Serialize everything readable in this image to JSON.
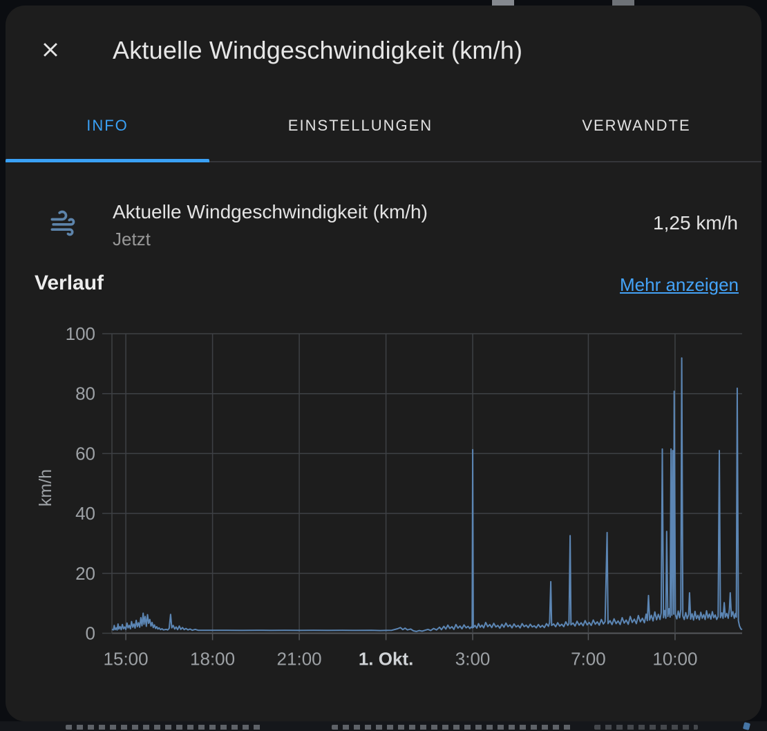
{
  "dialog": {
    "title": "Aktuelle Windgeschwindigkeit (km/h)",
    "tabs": [
      {
        "label": "INFO",
        "active": true
      },
      {
        "label": "EINSTELLUNGEN",
        "active": false
      },
      {
        "label": "VERWANDTE",
        "active": false
      }
    ],
    "entity": {
      "icon": "weather-windy-icon",
      "name": "Aktuelle Windgeschwindigkeit (km/h)",
      "subtitle": "Jetzt",
      "value": "1,25 km/h"
    },
    "history": {
      "heading": "Verlauf",
      "more_link": "Mehr anzeigen"
    }
  },
  "colors": {
    "accent": "#3aa1f6",
    "line": "#5c86b4",
    "grid": "#3e4145",
    "axis_line": "#55585c",
    "tick_text": "#9da1a5",
    "tick_text_bold": "#d0d3d6",
    "icon": "#5d84ab"
  },
  "chart_data": {
    "type": "line",
    "title": "Verlauf",
    "ylabel": "km/h",
    "ylim": [
      0,
      100
    ],
    "yticks": [
      0,
      20,
      40,
      60,
      80,
      100
    ],
    "grid": true,
    "legend": "none",
    "x_unit": "hours_relative_to_midnight_1_okt",
    "xrange": [
      -9.48,
      12.32
    ],
    "xticks": [
      {
        "t": -9,
        "label": "15:00",
        "bold": false
      },
      {
        "t": -6,
        "label": "18:00",
        "bold": false
      },
      {
        "t": -3,
        "label": "21:00",
        "bold": false
      },
      {
        "t": 0,
        "label": "1. Okt.",
        "bold": true
      },
      {
        "t": 3,
        "label": "3:00",
        "bold": false
      },
      {
        "t": 7,
        "label": "7:00",
        "bold": false
      },
      {
        "t": 10,
        "label": "10:00",
        "bold": false
      }
    ],
    "series": [
      {
        "name": "Aktuelle Windgeschwindigkeit (km/h)",
        "unit": "km/h",
        "current": 1.25,
        "points": [
          [
            -9.48,
            1.3
          ],
          [
            -9.43,
            1.1
          ],
          [
            -9.4,
            2.6
          ],
          [
            -9.37,
            1.2
          ],
          [
            -9.33,
            1.8
          ],
          [
            -9.3,
            1.1
          ],
          [
            -9.27,
            3.1
          ],
          [
            -9.24,
            1.4
          ],
          [
            -9.2,
            2.2
          ],
          [
            -9.16,
            1.2
          ],
          [
            -9.12,
            2.9
          ],
          [
            -9.08,
            1.5
          ],
          [
            -9.04,
            2.1
          ],
          [
            -9.0,
            1.3
          ],
          [
            -8.96,
            3.4
          ],
          [
            -8.92,
            1.8
          ],
          [
            -8.88,
            2.6
          ],
          [
            -8.84,
            1.5
          ],
          [
            -8.8,
            3.9
          ],
          [
            -8.76,
            2.0
          ],
          [
            -8.72,
            3.1
          ],
          [
            -8.68,
            1.7
          ],
          [
            -8.64,
            4.3
          ],
          [
            -8.6,
            2.2
          ],
          [
            -8.56,
            3.5
          ],
          [
            -8.52,
            2.0
          ],
          [
            -8.48,
            5.2
          ],
          [
            -8.44,
            2.5
          ],
          [
            -8.4,
            6.7
          ],
          [
            -8.37,
            3.0
          ],
          [
            -8.33,
            5.6
          ],
          [
            -8.29,
            2.3
          ],
          [
            -8.25,
            6.2
          ],
          [
            -8.21,
            3.3
          ],
          [
            -8.17,
            4.6
          ],
          [
            -8.13,
            2.4
          ],
          [
            -8.09,
            3.6
          ],
          [
            -8.05,
            1.9
          ],
          [
            -8.01,
            2.8
          ],
          [
            -7.97,
            1.6
          ],
          [
            -7.93,
            2.2
          ],
          [
            -7.89,
            1.4
          ],
          [
            -7.85,
            1.8
          ],
          [
            -7.8,
            1.2
          ],
          [
            -7.75,
            1.5
          ],
          [
            -7.7,
            1.1
          ],
          [
            -7.6,
            1.3
          ],
          [
            -7.55,
            1.1
          ],
          [
            -7.5,
            1.6
          ],
          [
            -7.45,
            6.3
          ],
          [
            -7.41,
            1.8
          ],
          [
            -7.36,
            2.6
          ],
          [
            -7.31,
            1.4
          ],
          [
            -7.26,
            2.1
          ],
          [
            -7.21,
            1.2
          ],
          [
            -7.15,
            2.4
          ],
          [
            -7.1,
            1.3
          ],
          [
            -7.04,
            1.9
          ],
          [
            -6.98,
            1.2
          ],
          [
            -6.92,
            1.6
          ],
          [
            -6.85,
            1.1
          ],
          [
            -6.78,
            1.4
          ],
          [
            -6.7,
            1.0
          ],
          [
            -6.6,
            1.3
          ],
          [
            -6.5,
            1.0
          ],
          [
            -6.2,
            1.0
          ],
          [
            -5.5,
            1.0
          ],
          [
            -5.0,
            0.95
          ],
          [
            -4.5,
            1.0
          ],
          [
            -4.0,
            0.95
          ],
          [
            -3.5,
            1.0
          ],
          [
            -3.0,
            0.95
          ],
          [
            -2.5,
            1.0
          ],
          [
            -2.0,
            0.95
          ],
          [
            -1.5,
            1.0
          ],
          [
            -1.0,
            0.95
          ],
          [
            -0.5,
            1.0
          ],
          [
            -0.2,
            0.9
          ],
          [
            0.0,
            0.95
          ],
          [
            0.2,
            1.0
          ],
          [
            0.4,
            1.5
          ],
          [
            0.5,
            1.9
          ],
          [
            0.58,
            1.2
          ],
          [
            0.66,
            1.7
          ],
          [
            0.74,
            1.1
          ],
          [
            0.85,
            1.4
          ],
          [
            0.95,
            0.8
          ],
          [
            1.05,
            0.6
          ],
          [
            1.15,
            0.9
          ],
          [
            1.25,
            0.7
          ],
          [
            1.35,
            1.0
          ],
          [
            1.45,
            1.3
          ],
          [
            1.55,
            0.9
          ],
          [
            1.65,
            1.6
          ],
          [
            1.75,
            1.1
          ],
          [
            1.85,
            2.0
          ],
          [
            1.92,
            1.2
          ],
          [
            2.0,
            2.3
          ],
          [
            2.07,
            1.4
          ],
          [
            2.14,
            2.7
          ],
          [
            2.21,
            1.6
          ],
          [
            2.28,
            2.2
          ],
          [
            2.35,
            1.3
          ],
          [
            2.42,
            2.9
          ],
          [
            2.49,
            1.7
          ],
          [
            2.56,
            2.4
          ],
          [
            2.63,
            1.5
          ],
          [
            2.7,
            2.8
          ],
          [
            2.77,
            1.8
          ],
          [
            2.84,
            2.3
          ],
          [
            2.9,
            1.6
          ],
          [
            2.95,
            2.1
          ],
          [
            2.98,
            1.8
          ],
          [
            3.0,
            61.3
          ],
          [
            3.02,
            1.9
          ],
          [
            3.08,
            2.6
          ],
          [
            3.14,
            1.7
          ],
          [
            3.2,
            3.2
          ],
          [
            3.26,
            2.0
          ],
          [
            3.32,
            2.7
          ],
          [
            3.38,
            1.8
          ],
          [
            3.45,
            3.6
          ],
          [
            3.52,
            2.2
          ],
          [
            3.59,
            2.9
          ],
          [
            3.66,
            1.9
          ],
          [
            3.73,
            3.3
          ],
          [
            3.8,
            2.1
          ],
          [
            3.87,
            2.6
          ],
          [
            3.94,
            1.7
          ],
          [
            4.01,
            3.0
          ],
          [
            4.08,
            2.0
          ],
          [
            4.15,
            3.4
          ],
          [
            4.22,
            2.2
          ],
          [
            4.29,
            2.8
          ],
          [
            4.36,
            1.8
          ],
          [
            4.43,
            3.1
          ],
          [
            4.5,
            2.1
          ],
          [
            4.57,
            2.6
          ],
          [
            4.64,
            1.8
          ],
          [
            4.71,
            3.2
          ],
          [
            4.78,
            2.2
          ],
          [
            4.85,
            2.7
          ],
          [
            4.92,
            1.9
          ],
          [
            4.99,
            3.0
          ],
          [
            5.06,
            2.1
          ],
          [
            5.13,
            2.5
          ],
          [
            5.2,
            1.8
          ],
          [
            5.27,
            2.9
          ],
          [
            5.34,
            2.0
          ],
          [
            5.41,
            2.6
          ],
          [
            5.48,
            1.9
          ],
          [
            5.55,
            3.2
          ],
          [
            5.62,
            2.3
          ],
          [
            5.66,
            3.6
          ],
          [
            5.7,
            17.2
          ],
          [
            5.73,
            2.6
          ],
          [
            5.8,
            3.1
          ],
          [
            5.87,
            2.2
          ],
          [
            5.94,
            3.5
          ],
          [
            6.01,
            2.4
          ],
          [
            6.08,
            3.0
          ],
          [
            6.15,
            2.2
          ],
          [
            6.22,
            3.8
          ],
          [
            6.29,
            2.6
          ],
          [
            6.33,
            3.2
          ],
          [
            6.37,
            32.6
          ],
          [
            6.4,
            2.8
          ],
          [
            6.47,
            3.4
          ],
          [
            6.54,
            2.4
          ],
          [
            6.61,
            4.0
          ],
          [
            6.68,
            2.7
          ],
          [
            6.75,
            3.5
          ],
          [
            6.82,
            2.5
          ],
          [
            6.89,
            4.2
          ],
          [
            6.96,
            2.8
          ],
          [
            7.03,
            3.6
          ],
          [
            7.1,
            2.6
          ],
          [
            7.17,
            4.4
          ],
          [
            7.24,
            3.0
          ],
          [
            7.31,
            3.8
          ],
          [
            7.38,
            2.7
          ],
          [
            7.45,
            4.6
          ],
          [
            7.52,
            3.1
          ],
          [
            7.58,
            3.9
          ],
          [
            7.65,
            33.6
          ],
          [
            7.68,
            3.2
          ],
          [
            7.75,
            4.2
          ],
          [
            7.82,
            2.9
          ],
          [
            7.89,
            4.8
          ],
          [
            7.96,
            3.2
          ],
          [
            8.03,
            4.1
          ],
          [
            8.1,
            2.9
          ],
          [
            8.17,
            5.2
          ],
          [
            8.24,
            3.4
          ],
          [
            8.31,
            4.4
          ],
          [
            8.38,
            3.0
          ],
          [
            8.45,
            5.6
          ],
          [
            8.52,
            3.6
          ],
          [
            8.59,
            4.7
          ],
          [
            8.66,
            3.2
          ],
          [
            8.73,
            5.9
          ],
          [
            8.8,
            3.8
          ],
          [
            8.87,
            5.0
          ],
          [
            8.94,
            3.5
          ],
          [
            9.0,
            6.4
          ],
          [
            9.04,
            4.2
          ],
          [
            9.08,
            12.6
          ],
          [
            9.12,
            4.4
          ],
          [
            9.18,
            6.0
          ],
          [
            9.24,
            4.1
          ],
          [
            9.3,
            7.1
          ],
          [
            9.36,
            4.5
          ],
          [
            9.42,
            6.3
          ],
          [
            9.48,
            4.6
          ],
          [
            9.52,
            6.8
          ],
          [
            9.56,
            61.5
          ],
          [
            9.6,
            5.2
          ],
          [
            9.64,
            7.6
          ],
          [
            9.68,
            5.0
          ],
          [
            9.71,
            34.0
          ],
          [
            9.75,
            5.6
          ],
          [
            9.79,
            8.2
          ],
          [
            9.83,
            5.4
          ],
          [
            9.86,
            61.5
          ],
          [
            9.89,
            6.0
          ],
          [
            9.92,
            61.0
          ],
          [
            9.95,
            6.4
          ],
          [
            9.97,
            80.8
          ],
          [
            10.01,
            6.2
          ],
          [
            10.06,
            4.8
          ],
          [
            10.11,
            7.4
          ],
          [
            10.16,
            5.2
          ],
          [
            10.2,
            8.0
          ],
          [
            10.23,
            91.9
          ],
          [
            10.27,
            5.8
          ],
          [
            10.32,
            4.6
          ],
          [
            10.37,
            6.9
          ],
          [
            10.42,
            4.9
          ],
          [
            10.47,
            6.2
          ],
          [
            10.5,
            13.5
          ],
          [
            10.54,
            4.7
          ],
          [
            10.59,
            6.5
          ],
          [
            10.64,
            4.4
          ],
          [
            10.69,
            7.3
          ],
          [
            10.74,
            4.9
          ],
          [
            10.79,
            6.0
          ],
          [
            10.84,
            4.5
          ],
          [
            10.89,
            7.0
          ],
          [
            10.94,
            5.0
          ],
          [
            10.99,
            6.2
          ],
          [
            11.04,
            4.6
          ],
          [
            11.09,
            7.5
          ],
          [
            11.14,
            5.1
          ],
          [
            11.19,
            6.4
          ],
          [
            11.24,
            4.7
          ],
          [
            11.29,
            7.2
          ],
          [
            11.34,
            5.2
          ],
          [
            11.39,
            6.1
          ],
          [
            11.44,
            4.6
          ],
          [
            11.49,
            5.6
          ],
          [
            11.53,
            61.0
          ],
          [
            11.57,
            5.2
          ],
          [
            11.62,
            6.8
          ],
          [
            11.66,
            5.0
          ],
          [
            11.7,
            10.2
          ],
          [
            11.74,
            5.4
          ],
          [
            11.79,
            6.6
          ],
          [
            11.84,
            5.0
          ],
          [
            11.88,
            8.0
          ],
          [
            11.91,
            13.5
          ],
          [
            11.95,
            5.6
          ],
          [
            12.0,
            7.2
          ],
          [
            12.05,
            5.0
          ],
          [
            12.09,
            6.6
          ],
          [
            12.12,
            5.4
          ],
          [
            12.15,
            81.8
          ],
          [
            12.19,
            4.2
          ],
          [
            12.23,
            2.4
          ],
          [
            12.28,
            1.4
          ],
          [
            12.32,
            1.2
          ]
        ]
      }
    ]
  }
}
